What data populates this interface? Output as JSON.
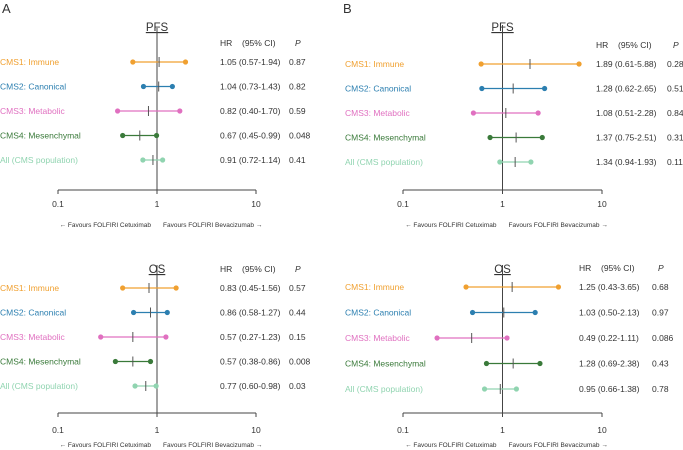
{
  "colors": {
    "CMS1": "#f0a030",
    "CMS2": "#2c7fb0",
    "CMS3": "#e070c0",
    "CMS4": "#3a7a3a",
    "All": "#90d4b0",
    "axis": "#444444",
    "text": "#333333"
  },
  "panel_letters": [
    "A",
    "B"
  ],
  "col_headers": {
    "hr": "HR",
    "ci": "(95% CI)",
    "p": "P"
  },
  "favours_left": "← Favours FOLFIRI Cetuximab",
  "favours_right": "Favours FOLFIRI Bevacizumab →",
  "chart_data": [
    {
      "type": "forest",
      "panel": "A",
      "title": "PFS",
      "xscale": "log",
      "xlim": [
        0.1,
        10
      ],
      "xticks": [
        "0.1",
        "1",
        "10"
      ],
      "rows": [
        {
          "group": "CMS1",
          "label": "CMS1: Immune",
          "hr": 1.05,
          "lo": 0.57,
          "hi": 1.94,
          "hr_text": "1.05 (0.57-1.94)",
          "p": "0.87"
        },
        {
          "group": "CMS2",
          "label": "CMS2: Canonical",
          "hr": 1.04,
          "lo": 0.73,
          "hi": 1.43,
          "hr_text": "1.04 (0.73-1.43)",
          "p": "0.82"
        },
        {
          "group": "CMS3",
          "label": "CMS3: Metabolic",
          "hr": 0.82,
          "lo": 0.4,
          "hi": 1.7,
          "hr_text": "0.82 (0.40-1.70)",
          "p": "0.59"
        },
        {
          "group": "CMS4",
          "label": "CMS4: Mesenchymal",
          "hr": 0.67,
          "lo": 0.45,
          "hi": 0.99,
          "hr_text": "0.67 (0.45-0.99)",
          "p": "0.048"
        },
        {
          "group": "All",
          "label": "All (CMS population)",
          "hr": 0.91,
          "lo": 0.72,
          "hi": 1.14,
          "hr_text": "0.91 (0.72-1.14)",
          "p": "0.41"
        }
      ]
    },
    {
      "type": "forest",
      "panel": "B",
      "title": "PFS",
      "xscale": "log",
      "xlim": [
        0.1,
        10
      ],
      "xticks": [
        "0.1",
        "1",
        "10"
      ],
      "rows": [
        {
          "group": "CMS1",
          "label": "CMS1: Immune",
          "hr": 1.89,
          "lo": 0.61,
          "hi": 5.88,
          "hr_text": "1.89 (0.61-5.88)",
          "p": "0.28"
        },
        {
          "group": "CMS2",
          "label": "CMS2: Canonical",
          "hr": 1.28,
          "lo": 0.62,
          "hi": 2.65,
          "hr_text": "1.28 (0.62-2.65)",
          "p": "0.51"
        },
        {
          "group": "CMS3",
          "label": "CMS3: Metabolic",
          "hr": 1.08,
          "lo": 0.51,
          "hi": 2.28,
          "hr_text": "1.08 (0.51-2.28)",
          "p": "0.84"
        },
        {
          "group": "CMS4",
          "label": "CMS4: Mesenchymal",
          "hr": 1.37,
          "lo": 0.75,
          "hi": 2.51,
          "hr_text": "1.37 (0.75-2.51)",
          "p": "0.31"
        },
        {
          "group": "All",
          "label": "All (CMS population)",
          "hr": 1.34,
          "lo": 0.94,
          "hi": 1.93,
          "hr_text": "1.34 (0.94-1.93)",
          "p": "0.11"
        }
      ]
    },
    {
      "type": "forest",
      "panel": "A",
      "title": "OS",
      "xscale": "log",
      "xlim": [
        0.1,
        10
      ],
      "xticks": [
        "0.1",
        "1",
        "10"
      ],
      "rows": [
        {
          "group": "CMS1",
          "label": "CMS1: Immune",
          "hr": 0.83,
          "lo": 0.45,
          "hi": 1.56,
          "hr_text": "0.83 (0.45-1.56)",
          "p": "0.57"
        },
        {
          "group": "CMS2",
          "label": "CMS2: Canonical",
          "hr": 0.86,
          "lo": 0.58,
          "hi": 1.27,
          "hr_text": "0.86 (0.58-1.27)",
          "p": "0.44"
        },
        {
          "group": "CMS3",
          "label": "CMS3: Metabolic",
          "hr": 0.57,
          "lo": 0.27,
          "hi": 1.23,
          "hr_text": "0.57 (0.27-1.23)",
          "p": "0.15"
        },
        {
          "group": "CMS4",
          "label": "CMS4: Mesenchymal",
          "hr": 0.57,
          "lo": 0.38,
          "hi": 0.86,
          "hr_text": "0.57 (0.38-0.86)",
          "p": "0.008"
        },
        {
          "group": "All",
          "label": "All (CMS population)",
          "hr": 0.77,
          "lo": 0.6,
          "hi": 0.98,
          "hr_text": "0.77 (0.60-0.98)",
          "p": "0.03"
        }
      ]
    },
    {
      "type": "forest",
      "panel": "B",
      "title": "OS",
      "xscale": "log",
      "xlim": [
        0.1,
        10
      ],
      "xticks": [
        "0.1",
        "1",
        "10"
      ],
      "rows": [
        {
          "group": "CMS1",
          "label": "CMS1: Immune",
          "hr": 1.25,
          "lo": 0.43,
          "hi": 3.65,
          "hr_text": "1.25 (0.43-3.65)",
          "p": "0.68"
        },
        {
          "group": "CMS2",
          "label": "CMS2: Canonical",
          "hr": 1.03,
          "lo": 0.5,
          "hi": 2.13,
          "hr_text": "1.03 (0.50-2.13)",
          "p": "0.97"
        },
        {
          "group": "CMS3",
          "label": "CMS3: Metabolic",
          "hr": 0.49,
          "lo": 0.22,
          "hi": 1.11,
          "hr_text": "0.49 (0.22-1.11)",
          "p": "0.086"
        },
        {
          "group": "CMS4",
          "label": "CMS4: Mesenchymal",
          "hr": 1.28,
          "lo": 0.69,
          "hi": 2.38,
          "hr_text": "1.28 (0.69-2.38)",
          "p": "0.43"
        },
        {
          "group": "All",
          "label": "All (CMS population)",
          "hr": 0.95,
          "lo": 0.66,
          "hi": 1.38,
          "hr_text": "0.95 (0.66-1.38)",
          "p": "0.78"
        }
      ]
    }
  ]
}
